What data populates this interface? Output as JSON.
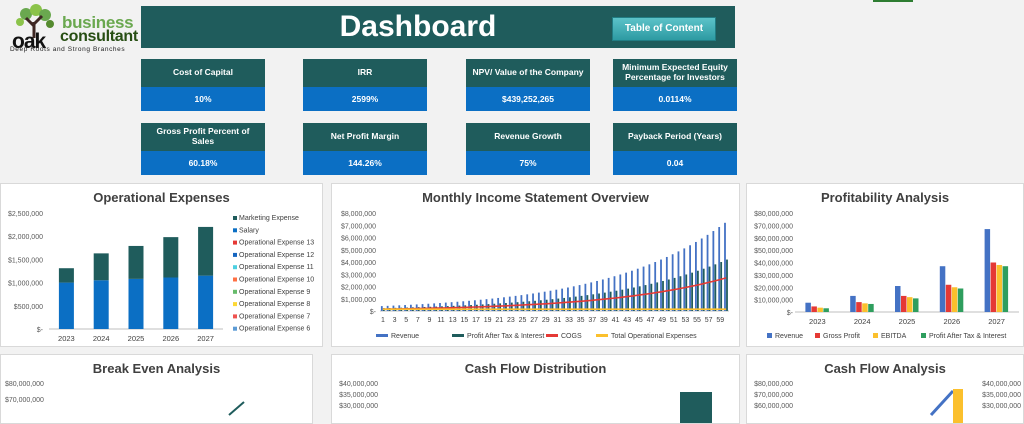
{
  "logo": {
    "oak": "oak",
    "business": "business",
    "consultant": "consultant",
    "tagline": "Deep Roots and Strong Branches"
  },
  "header": {
    "title": "Dashboard",
    "toc_label": "Table of Content"
  },
  "kpis": [
    {
      "label": "Cost of Capital",
      "value": "10%"
    },
    {
      "label": "IRR",
      "value": "2599%"
    },
    {
      "label": "NPV/ Value of the Company",
      "value": "$439,252,265"
    },
    {
      "label": "Minimum Expected Equity Percentage for Investors",
      "value": "0.0114%"
    },
    {
      "label": "Gross Profit Percent of Sales",
      "value": "60.18%"
    },
    {
      "label": "Net Profit Margin",
      "value": "144.26%"
    },
    {
      "label": "Revenue Growth",
      "value": "75%"
    },
    {
      "label": "Payback Period (Years)",
      "value": "0.04"
    }
  ],
  "colors": {
    "header": "#1f5c5c",
    "kpi_value": "#0b6fc4",
    "accent": "#5cc3c9"
  },
  "chart_data": [
    {
      "id": "opex",
      "type": "bar",
      "title": "Operational Expenses",
      "categories": [
        "2023",
        "2024",
        "2025",
        "2026",
        "2027"
      ],
      "yticks": [
        "$2,500,000",
        "$2,000,000",
        "$1,500,000",
        "$1,000,000",
        "$500,000",
        "$-"
      ],
      "ylim": [
        0,
        2500000
      ],
      "series": [
        {
          "name": "Salary",
          "color": "#0b6fc4",
          "values": [
            1000000,
            1050000,
            1080000,
            1110000,
            1150000
          ]
        },
        {
          "name": "Marketing Expense",
          "color": "#1f5c5c",
          "values": [
            310000,
            580000,
            710000,
            870000,
            1050000
          ]
        }
      ],
      "legend": [
        {
          "name": "Marketing Expense",
          "color": "#1f5c5c"
        },
        {
          "name": "Salary",
          "color": "#0b6fc4"
        },
        {
          "name": "Operational Expense 13",
          "color": "#e53935"
        },
        {
          "name": "Operational Expense 12",
          "color": "#1565c0"
        },
        {
          "name": "Operational Expense 11",
          "color": "#4dd0e1"
        },
        {
          "name": "Operational Expense 10",
          "color": "#ff7043"
        },
        {
          "name": "Operational Expense 9",
          "color": "#66bb6a"
        },
        {
          "name": "Operational Expense 8",
          "color": "#fdd835"
        },
        {
          "name": "Operational Expense 7",
          "color": "#ef5350"
        },
        {
          "name": "Operational Expense 6",
          "color": "#5c9bd5"
        }
      ]
    },
    {
      "id": "monthly",
      "type": "bar",
      "title": "Monthly Income Statement Overview",
      "yticks": [
        "$8,000,000",
        "$7,000,000",
        "$6,000,000",
        "$5,000,000",
        "$4,000,000",
        "$3,000,000",
        "$2,000,000",
        "$1,000,000",
        "$-"
      ],
      "ylim": [
        0,
        8000000
      ],
      "xticks": [
        "1",
        "3",
        "5",
        "7",
        "9",
        "11",
        "13",
        "15",
        "17",
        "19",
        "21",
        "23",
        "25",
        "27",
        "29",
        "31",
        "33",
        "35",
        "37",
        "39",
        "41",
        "43",
        "45",
        "47",
        "49",
        "51",
        "53",
        "55",
        "57",
        "59"
      ],
      "months": 60,
      "revenue_start": 400000,
      "revenue_end": 7200000,
      "profit_end": 4200000,
      "cogs_end": 2700000,
      "opex": 150000,
      "legend": [
        {
          "name": "Revenue",
          "color": "#4472c4"
        },
        {
          "name": "Profit After Tax & Interest",
          "color": "#1f5c5c"
        },
        {
          "name": "COGS",
          "color": "#e53935"
        },
        {
          "name": "Total Operational Expenses",
          "color": "#fbc02d"
        }
      ]
    },
    {
      "id": "profitability",
      "type": "bar",
      "title": "Profitability Analysis",
      "categories": [
        "2023",
        "2024",
        "2025",
        "2026",
        "2027"
      ],
      "yticks": [
        "$80,000,000",
        "$70,000,000",
        "$60,000,000",
        "$50,000,000",
        "$40,000,000",
        "$30,000,000",
        "$20,000,000",
        "$10,000,000",
        "$-"
      ],
      "ylim": [
        0,
        80000000
      ],
      "series": [
        {
          "name": "Revenue",
          "color": "#4472c4",
          "values": [
            7500000,
            13000000,
            21000000,
            37000000,
            67000000
          ]
        },
        {
          "name": "Gross Profit",
          "color": "#e53935",
          "values": [
            4500000,
            8000000,
            13000000,
            22000000,
            40000000
          ]
        },
        {
          "name": "EBITDA",
          "color": "#fbc02d",
          "values": [
            3500000,
            7000000,
            12000000,
            20000000,
            38000000
          ]
        },
        {
          "name": "Profit After Tax & Interest",
          "color": "#2e9e5e",
          "values": [
            3000000,
            6500000,
            11000000,
            19000000,
            37000000
          ]
        }
      ]
    },
    {
      "id": "breakeven",
      "type": "line",
      "title": "Break Even Analysis",
      "yticks": [
        "$80,000,000",
        "$70,000,000"
      ]
    },
    {
      "id": "cashflowdist",
      "type": "bar",
      "title": "Cash Flow Distribution",
      "yticks": [
        "$40,000,000",
        "$35,000,000",
        "$30,000,000"
      ]
    },
    {
      "id": "cashflow",
      "type": "bar",
      "title": "Cash Flow Analysis",
      "yticks": [
        "$80,000,000",
        "$70,000,000",
        "$60,000,000"
      ],
      "y2ticks": [
        "$40,000,000",
        "$35,000,000",
        "$30,000,000"
      ]
    }
  ]
}
